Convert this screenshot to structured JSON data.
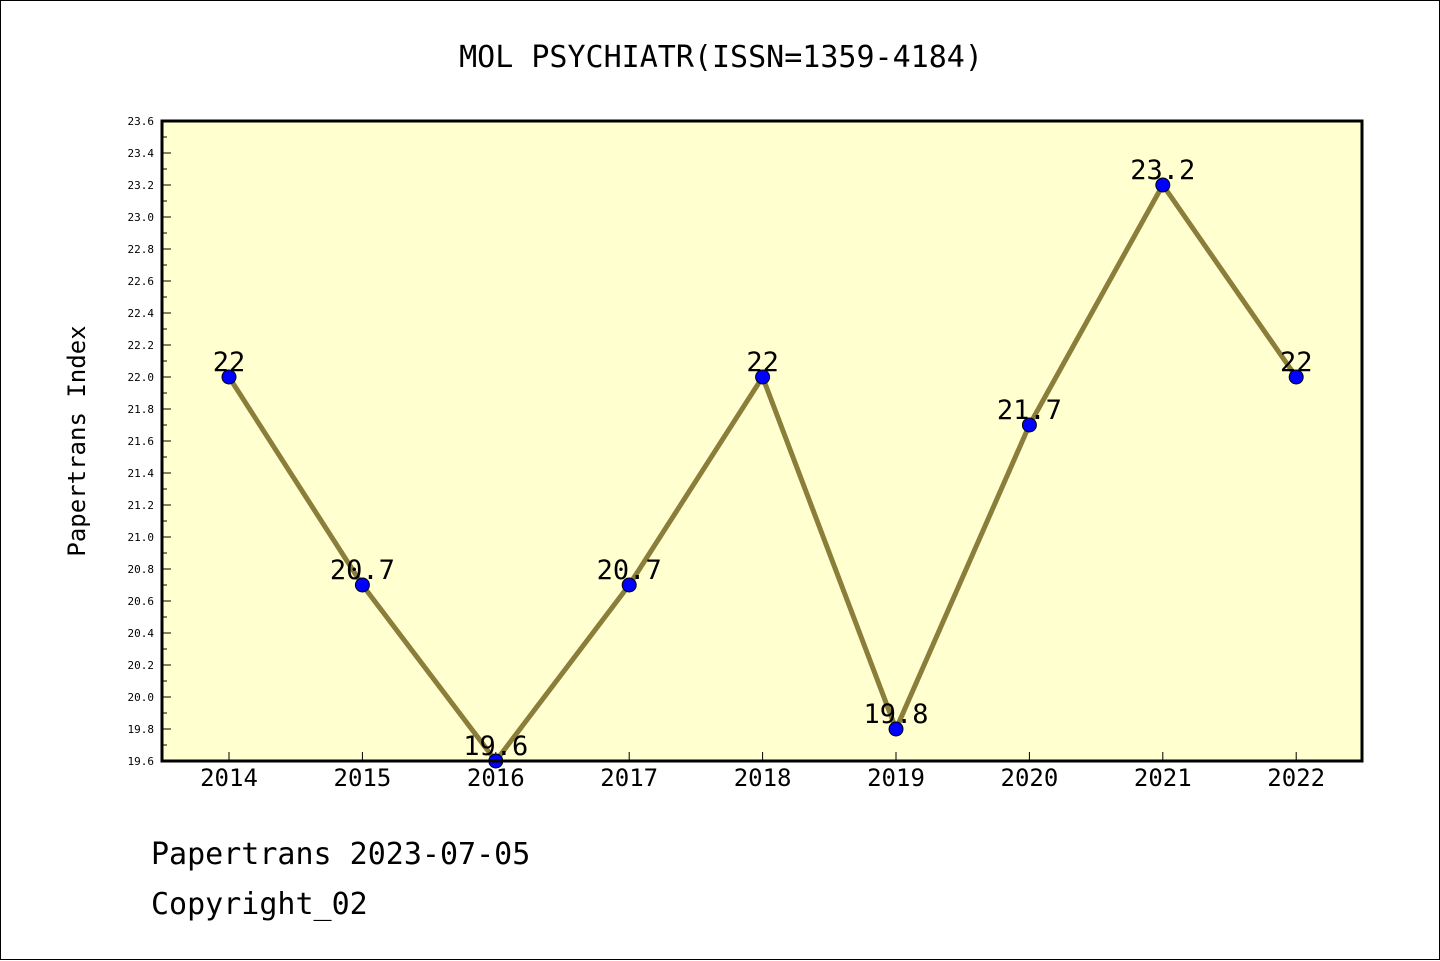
{
  "chart_data": {
    "type": "line",
    "title": "MOL PSYCHIATR(ISSN=1359-4184)",
    "xlabel": "",
    "ylabel": "Papertrans Index",
    "categories": [
      "2014",
      "2015",
      "2016",
      "2017",
      "2018",
      "2019",
      "2020",
      "2021",
      "2022"
    ],
    "series": [
      {
        "values": [
          22,
          20.7,
          19.6,
          20.7,
          22,
          19.8,
          21.7,
          23.2,
          22
        ],
        "data_labels": [
          "22",
          "20.7",
          "19.6",
          "20.7",
          "22",
          "19.8",
          "21.7",
          "23.2",
          "22"
        ]
      }
    ],
    "ylim": [
      19.6,
      23.6
    ],
    "yticks": [
      "19.6",
      "19.8",
      "20.0",
      "20.2",
      "20.4",
      "20.6",
      "20.8",
      "21.0",
      "21.2",
      "21.4",
      "21.6",
      "21.8",
      "22.0",
      "22.2",
      "22.4",
      "22.6",
      "22.8",
      "23.0",
      "23.2",
      "23.4",
      "23.6"
    ],
    "grid": false,
    "legend": "none",
    "colors": {
      "plot_background": "#FFFFD0",
      "line": "#8B7D3A",
      "marker": "#0000FF"
    }
  },
  "footer": {
    "line1": "Papertrans 2023-07-05",
    "line2": "Copyright_02"
  }
}
